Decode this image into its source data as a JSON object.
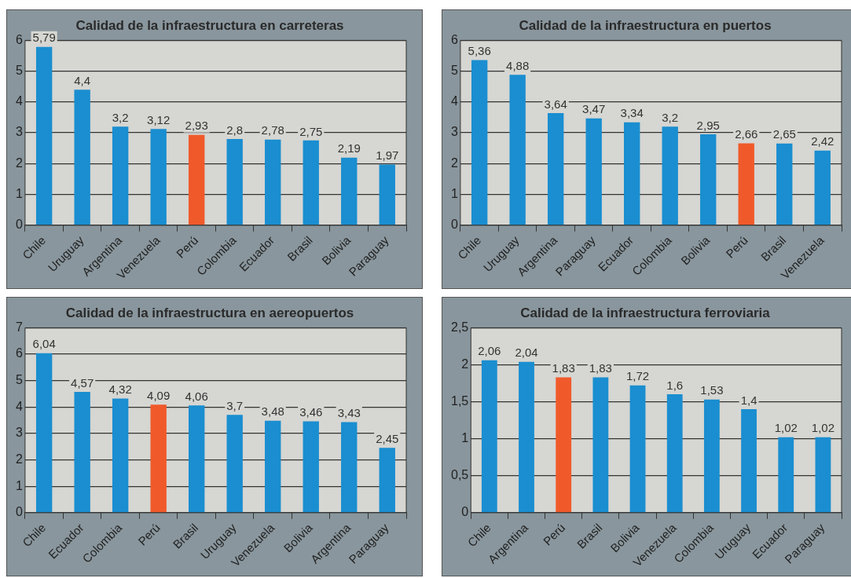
{
  "chart_data": [
    {
      "type": "bar",
      "title": "Calidad de la infraestructura en carreteras",
      "categories": [
        "Chile",
        "Uruguay",
        "Argentina",
        "Venezuela",
        "Perú",
        "Colombia",
        "Ecuador",
        "Brasil",
        "Bolivia",
        "Paraguay"
      ],
      "values": [
        5.79,
        4.4,
        3.2,
        3.12,
        2.93,
        2.8,
        2.78,
        2.75,
        2.19,
        1.97
      ],
      "value_labels": [
        "5,79",
        "4,4",
        "3,2",
        "3,12",
        "2,93",
        "2,8",
        "2,78",
        "2,75",
        "2,19",
        "1,97"
      ],
      "colors": [
        "#1a8ed0",
        "#1a8ed0",
        "#1a8ed0",
        "#1a8ed0",
        "#f05a2a",
        "#1a8ed0",
        "#1a8ed0",
        "#1a8ed0",
        "#1a8ed0",
        "#1a8ed0"
      ],
      "ylim": [
        0,
        6
      ],
      "yticks": [
        0,
        1,
        2,
        3,
        4,
        5,
        6
      ],
      "grid": "y",
      "legend": false
    },
    {
      "type": "bar",
      "title": "Calidad de la infraestructura en puertos",
      "categories": [
        "Chile",
        "Uruguay",
        "Argentina",
        "Paraguay",
        "Ecuador",
        "Colombia",
        "Bolivia",
        "Perú",
        "Brasil",
        "Venezuela"
      ],
      "values": [
        5.36,
        4.88,
        3.64,
        3.47,
        3.34,
        3.2,
        2.95,
        2.66,
        2.65,
        2.42
      ],
      "value_labels": [
        "5,36",
        "4,88",
        "3,64",
        "3,47",
        "3,34",
        "3,2",
        "2,95",
        "2,66",
        "2,65",
        "2,42"
      ],
      "colors": [
        "#1a8ed0",
        "#1a8ed0",
        "#1a8ed0",
        "#1a8ed0",
        "#1a8ed0",
        "#1a8ed0",
        "#1a8ed0",
        "#f05a2a",
        "#1a8ed0",
        "#1a8ed0"
      ],
      "ylim": [
        0,
        6
      ],
      "yticks": [
        0,
        1,
        2,
        3,
        4,
        5,
        6
      ],
      "grid": "y",
      "legend": false
    },
    {
      "type": "bar",
      "title": "Calidad de la infraestructura en aereopuertos",
      "categories": [
        "Chile",
        "Ecuador",
        "Colombia",
        "Perú",
        "Brasil",
        "Uruguay",
        "Venezuela",
        "Bolivia",
        "Argentina",
        "Paraguay"
      ],
      "values": [
        6.04,
        4.57,
        4.32,
        4.09,
        4.06,
        3.7,
        3.48,
        3.46,
        3.43,
        2.45
      ],
      "value_labels": [
        "6,04",
        "4,57",
        "4,32",
        "4,09",
        "4,06",
        "3,7",
        "3,48",
        "3,46",
        "3,43",
        "2,45"
      ],
      "colors": [
        "#1a8ed0",
        "#1a8ed0",
        "#1a8ed0",
        "#f05a2a",
        "#1a8ed0",
        "#1a8ed0",
        "#1a8ed0",
        "#1a8ed0",
        "#1a8ed0",
        "#1a8ed0"
      ],
      "ylim": [
        0,
        7
      ],
      "yticks": [
        0,
        1,
        2,
        3,
        4,
        5,
        6,
        7
      ],
      "grid": "y",
      "legend": false
    },
    {
      "type": "bar",
      "title": "Calidad de la infraestructura ferroviaria",
      "categories": [
        "Chile",
        "Argentina",
        "Perú",
        "Brasil",
        "Bolivia",
        "Venezuela",
        "Colombia",
        "Uruguay",
        "Ecuador",
        "Paraguay"
      ],
      "values": [
        2.06,
        2.04,
        1.83,
        1.83,
        1.72,
        1.6,
        1.53,
        1.4,
        1.02,
        1.02
      ],
      "value_labels": [
        "2,06",
        "2,04",
        "1,83",
        "1,83",
        "1,72",
        "1,6",
        "1,53",
        "1,4",
        "1,02",
        "1,02"
      ],
      "colors": [
        "#1a8ed0",
        "#1a8ed0",
        "#f05a2a",
        "#1a8ed0",
        "#1a8ed0",
        "#1a8ed0",
        "#1a8ed0",
        "#1a8ed0",
        "#1a8ed0",
        "#1a8ed0"
      ],
      "ylim": [
        0,
        2.5
      ],
      "yticks": [
        0,
        {
          "value": 0.5,
          "label": "0,5"
        },
        1,
        {
          "value": 1.5,
          "label": "1,5"
        },
        2,
        {
          "value": 2.5,
          "label": "2,5"
        }
      ],
      "grid": "y",
      "legend": false
    }
  ]
}
